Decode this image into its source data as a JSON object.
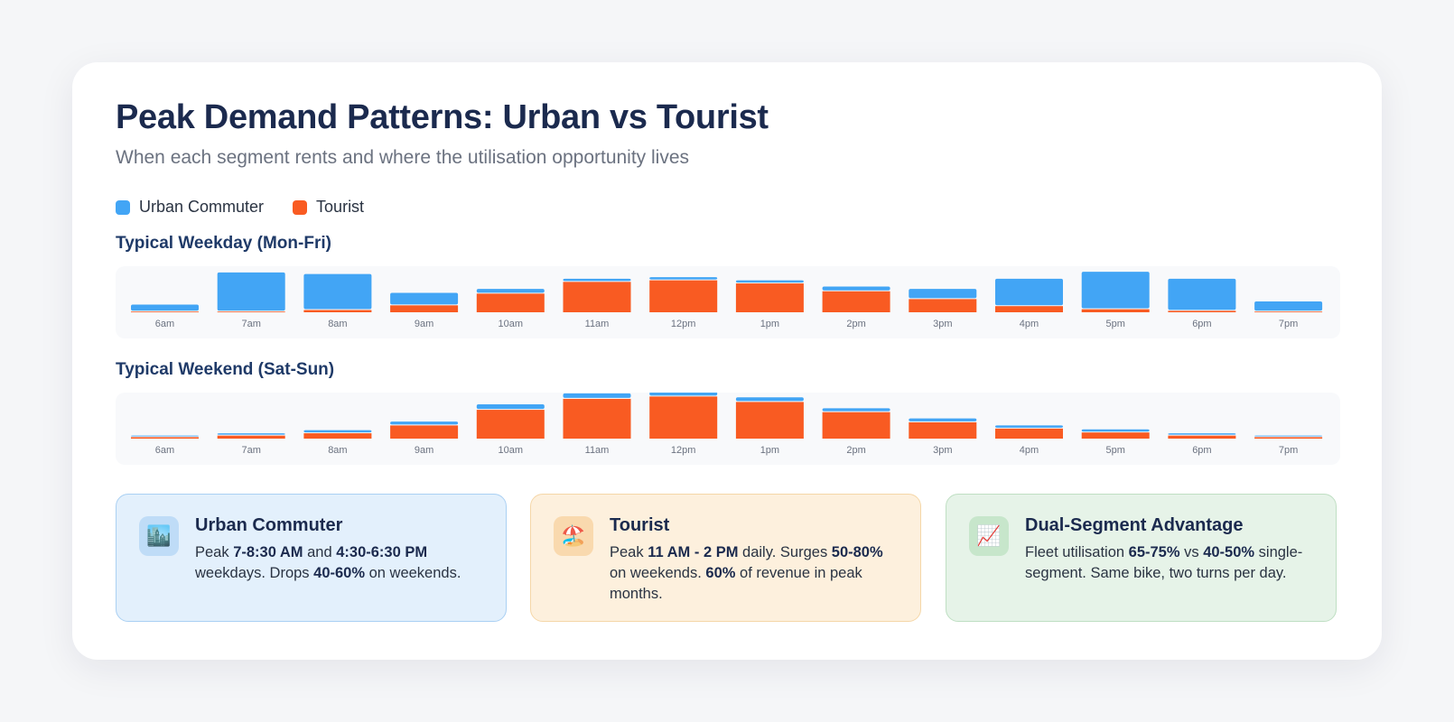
{
  "header": {
    "title": "Peak Demand Patterns: Urban vs Tourist",
    "subtitle": "When each segment rents and where the utilisation opportunity lives"
  },
  "legend": [
    {
      "label": "Urban Commuter",
      "color": "#42a5f5"
    },
    {
      "label": "Tourist",
      "color": "#f95b22"
    }
  ],
  "chart_data": [
    {
      "type": "bar",
      "stacked": true,
      "title": "Typical Weekday (Mon-Fri)",
      "categories": [
        "6am",
        "7am",
        "8am",
        "9am",
        "10am",
        "11am",
        "12pm",
        "1pm",
        "2pm",
        "3pm",
        "4pm",
        "5pm",
        "6pm",
        "7pm"
      ],
      "series": [
        {
          "name": "Tourist",
          "color": "#f95b22",
          "values": [
            2,
            2,
            4,
            10,
            25,
            40,
            42,
            38,
            28,
            18,
            9,
            5,
            3,
            2
          ]
        },
        {
          "name": "Urban Commuter",
          "color": "#42a5f5",
          "values": [
            9,
            50,
            46,
            16,
            6,
            4,
            4,
            4,
            6,
            13,
            35,
            48,
            41,
            13
          ]
        }
      ]
    },
    {
      "type": "bar",
      "stacked": true,
      "title": "Typical Weekend (Sat-Sun)",
      "categories": [
        "6am",
        "7am",
        "8am",
        "9am",
        "10am",
        "11am",
        "12pm",
        "1pm",
        "2pm",
        "3pm",
        "4pm",
        "5pm",
        "6pm",
        "7pm"
      ],
      "series": [
        {
          "name": "Tourist",
          "color": "#f95b22",
          "values": [
            3,
            5,
            8,
            18,
            38,
            52,
            55,
            48,
            35,
            22,
            14,
            9,
            5,
            3
          ]
        },
        {
          "name": "Urban Commuter",
          "color": "#42a5f5",
          "values": [
            2,
            3,
            4,
            5,
            7,
            7,
            6,
            6,
            5,
            5,
            4,
            4,
            3,
            2
          ]
        }
      ]
    }
  ],
  "cards": {
    "urban": {
      "icon": "city-icon",
      "glyph": "🏙️",
      "title": "Urban Commuter",
      "t1": "Peak ",
      "b1": "7-8:30 AM",
      "t2": " and ",
      "b2": "4:30-6:30 PM",
      "t3": " weekdays. Drops ",
      "b3": "40-60%",
      "t4": " on weekends."
    },
    "tourist": {
      "icon": "beach-umbrella-icon",
      "glyph": "🏖️",
      "title": "Tourist",
      "t1": "Peak ",
      "b1": "11 AM - 2 PM",
      "t2": " daily. Surges ",
      "b2": "50-80%",
      "t3": " on weekends. ",
      "b3": "60%",
      "t4": " of revenue in peak months."
    },
    "dual": {
      "icon": "chart-increasing-icon",
      "glyph": "📈",
      "title": "Dual-Segment Advantage",
      "t1": "Fleet utilisation ",
      "b1": "65-75%",
      "t2": " vs ",
      "b2": "40-50%",
      "t3": " single-segment. Same bike, two turns per day.",
      "b3": "",
      "t4": ""
    }
  }
}
